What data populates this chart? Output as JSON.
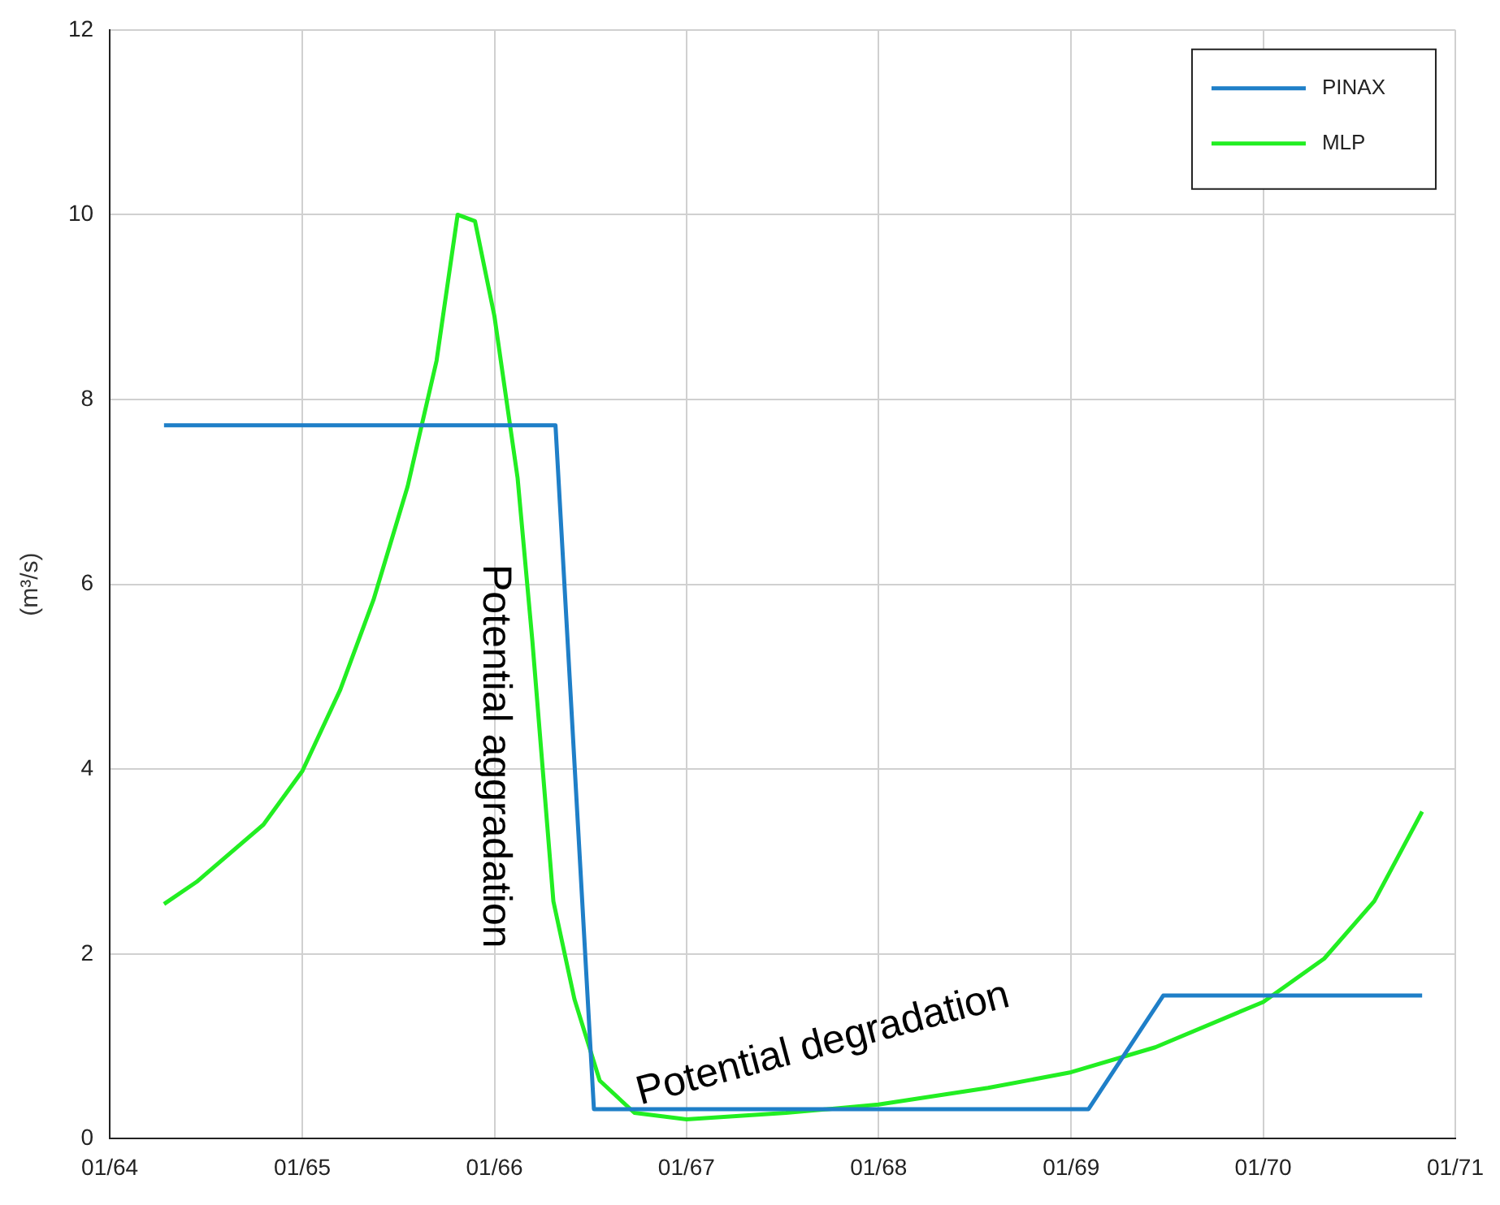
{
  "chart_data": {
    "type": "line",
    "ylabel": "(m³/s)",
    "xlim": [
      "1964-01-01",
      "1971-01-01"
    ],
    "xticks": [
      {
        "value": "1964-01-01",
        "label": "01/64"
      },
      {
        "value": "1965-01-01",
        "label": "01/65"
      },
      {
        "value": "1966-01-01",
        "label": "01/66"
      },
      {
        "value": "1967-01-01",
        "label": "01/67"
      },
      {
        "value": "1968-01-01",
        "label": "01/68"
      },
      {
        "value": "1969-01-01",
        "label": "01/69"
      },
      {
        "value": "1970-01-01",
        "label": "01/70"
      },
      {
        "value": "1971-01-01",
        "label": "01/71"
      }
    ],
    "ylim": [
      0,
      12
    ],
    "yticks": [
      0,
      2,
      4,
      6,
      8,
      10,
      12
    ],
    "grid": true,
    "legend": "top right",
    "marker": "none",
    "line_style": "solid",
    "series": [
      {
        "name": "PINAX",
        "color": "#1f7fc8",
        "x": [
          "1964-04-13",
          "1966-04-27",
          "1966-07-09",
          "1969-02-03",
          "1969-06-25",
          "1970-10-30"
        ],
        "values": [
          7.72,
          7.72,
          0.32,
          0.32,
          1.55,
          1.55
        ]
      },
      {
        "name": "MLP",
        "color": "#22ee22",
        "x": [
          "1964-04-13",
          "1964-06-14",
          "1964-10-19",
          "1965-01-01",
          "1965-03-14",
          "1965-05-16",
          "1965-07-20",
          "1965-09-13",
          "1965-10-23",
          "1965-11-25",
          "1966-01-01",
          "1966-02-14",
          "1966-03-14",
          "1966-04-23",
          "1966-06-02",
          "1966-07-20",
          "1966-09-24",
          "1967-01-01",
          "1967-07-09",
          "1968-01-01",
          "1968-07-27",
          "1969-01-01",
          "1969-06-10",
          "1970-01-01",
          "1970-04-27",
          "1970-07-31",
          "1970-10-30"
        ],
        "values": [
          2.54,
          2.78,
          3.4,
          3.98,
          4.86,
          5.83,
          7.06,
          8.42,
          10.0,
          9.93,
          8.9,
          7.15,
          5.39,
          2.57,
          1.51,
          0.63,
          0.28,
          0.21,
          0.28,
          0.37,
          0.55,
          0.72,
          0.99,
          1.48,
          1.95,
          2.57,
          3.54
        ]
      }
    ],
    "annotations": [
      "Potential aggradation",
      "Potential degradation"
    ]
  }
}
